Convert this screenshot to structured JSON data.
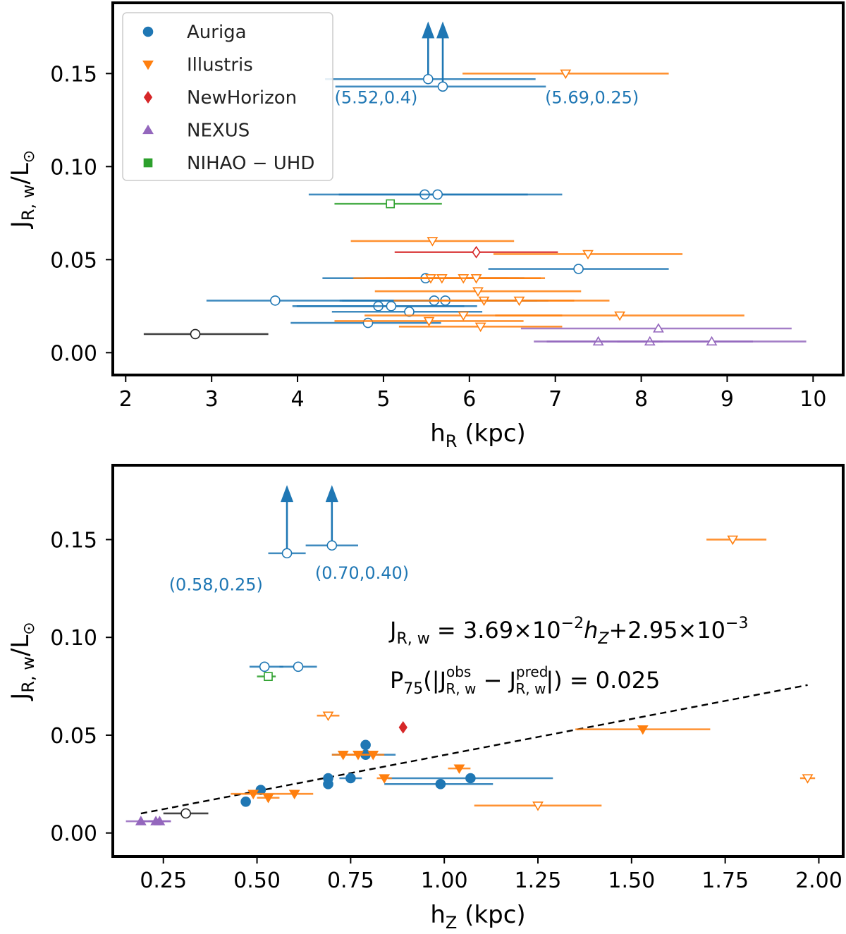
{
  "colors": {
    "Auriga": "#1f77b4",
    "Illustris": "#ff7f0e",
    "NewHorizon": "#d62728",
    "NEXUS": "#9467bd",
    "NIHAO-UHD": "#2ca02c",
    "other": "#222222",
    "fit": "#000000"
  },
  "chart_data": [
    {
      "type": "scatter",
      "xlabel": "h",
      "xlabel_sub": "R",
      "xlabel_unit": " (kpc)",
      "ylabel_main": "J",
      "ylabel_sub": "R, w",
      "ylabel_tail": "/L",
      "ylabel_sym": "⊙",
      "xlim": [
        1.85,
        10.35
      ],
      "ylim": [
        -0.012,
        0.188
      ],
      "xticks": [
        2,
        3,
        4,
        5,
        6,
        7,
        8,
        9,
        10
      ],
      "xtick_labels": [
        "2",
        "3",
        "4",
        "5",
        "6",
        "7",
        "8",
        "9",
        "10"
      ],
      "yticks": [
        0.0,
        0.05,
        0.1,
        0.15
      ],
      "ytick_labels": [
        "0.00",
        "0.05",
        "0.10",
        "0.15"
      ],
      "legend": {
        "placement": "top-left",
        "entries": [
          {
            "label": "Auriga",
            "series": "Auriga",
            "marker": "circle"
          },
          {
            "label": "Illustris",
            "series": "Illustris",
            "marker": "triangle-down"
          },
          {
            "label": "NewHorizon",
            "series": "NewHorizon",
            "marker": "diamond"
          },
          {
            "label": "NEXUS",
            "series": "NEXUS",
            "marker": "triangle-up"
          },
          {
            "label": "NIHAO − UHD",
            "series": "NIHAO-UHD",
            "marker": "square"
          }
        ]
      },
      "series": [
        {
          "name": "Auriga",
          "marker": "circle",
          "filled": false,
          "points": [
            {
              "x": 5.52,
              "y": 0.147,
              "xerr": [
                1.2,
                1.25
              ],
              "lower_limit": true
            },
            {
              "x": 5.69,
              "y": 0.143,
              "xerr": [
                1.25,
                1.2
              ],
              "lower_limit": true
            },
            {
              "x": 5.48,
              "y": 0.085,
              "xerr": [
                1.35,
                1.2
              ]
            },
            {
              "x": 5.63,
              "y": 0.085,
              "xerr": [
                1.15,
                1.45
              ]
            },
            {
              "x": 7.27,
              "y": 0.045,
              "xerr": [
                1.05,
                1.05
              ]
            },
            {
              "x": 5.49,
              "y": 0.04,
              "xerr": [
                1.2,
                1.15
              ]
            },
            {
              "x": 3.74,
              "y": 0.028,
              "xerr": [
                0.8,
                1.25
              ]
            },
            {
              "x": 5.59,
              "y": 0.028,
              "xerr": [
                1.1,
                1.2
              ]
            },
            {
              "x": 5.72,
              "y": 0.028,
              "xerr": [
                1.2,
                1.2
              ]
            },
            {
              "x": 4.94,
              "y": 0.025,
              "xerr": [
                1.0,
                1.0
              ]
            },
            {
              "x": 5.09,
              "y": 0.025,
              "xerr": [
                1.1,
                1.0
              ]
            },
            {
              "x": 5.3,
              "y": 0.022,
              "xerr": [
                0.9,
                0.85
              ]
            },
            {
              "x": 4.82,
              "y": 0.016,
              "xerr": [
                0.9,
                0.85
              ]
            }
          ]
        },
        {
          "name": "Illustris",
          "marker": "triangle-down",
          "filled": false,
          "points": [
            {
              "x": 7.12,
              "y": 0.15,
              "xerr": [
                1.2,
                1.2
              ]
            },
            {
              "x": 5.57,
              "y": 0.06,
              "xerr": [
                0.95,
                0.95
              ]
            },
            {
              "x": 7.38,
              "y": 0.053,
              "xerr": [
                1.1,
                1.1
              ]
            },
            {
              "x": 5.55,
              "y": 0.04,
              "xerr": [
                0.9,
                0.9
              ]
            },
            {
              "x": 5.68,
              "y": 0.04,
              "xerr": [
                0.9,
                0.9
              ]
            },
            {
              "x": 5.93,
              "y": 0.04,
              "xerr": [
                0.9,
                0.9
              ]
            },
            {
              "x": 6.08,
              "y": 0.04,
              "xerr": [
                0.8,
                0.8
              ]
            },
            {
              "x": 6.1,
              "y": 0.033,
              "xerr": [
                1.2,
                1.2
              ]
            },
            {
              "x": 6.17,
              "y": 0.028,
              "xerr": [
                1.05,
                1.05
              ]
            },
            {
              "x": 6.58,
              "y": 0.028,
              "xerr": [
                1.05,
                1.05
              ]
            },
            {
              "x": 5.93,
              "y": 0.02,
              "xerr": [
                1.15,
                1.15
              ]
            },
            {
              "x": 7.75,
              "y": 0.02,
              "xerr": [
                1.45,
                1.45
              ]
            },
            {
              "x": 5.53,
              "y": 0.017,
              "xerr": [
                1.1,
                1.1
              ]
            },
            {
              "x": 6.13,
              "y": 0.014,
              "xerr": [
                0.95,
                0.95
              ]
            }
          ]
        },
        {
          "name": "NewHorizon",
          "marker": "diamond",
          "filled": false,
          "points": [
            {
              "x": 6.08,
              "y": 0.054,
              "xerr": [
                0.95,
                0.95
              ]
            }
          ]
        },
        {
          "name": "NEXUS",
          "marker": "triangle-up",
          "filled": false,
          "points": [
            {
              "x": 8.2,
              "y": 0.013,
              "xerr": [
                1.6,
                1.55
              ]
            },
            {
              "x": 7.5,
              "y": 0.006,
              "xerr": [
                0.75,
                0.75
              ]
            },
            {
              "x": 8.1,
              "y": 0.006,
              "xerr": [
                1.2,
                1.2
              ]
            },
            {
              "x": 8.82,
              "y": 0.006,
              "xerr": [
                1.1,
                1.1
              ]
            }
          ]
        },
        {
          "name": "NIHAO-UHD",
          "marker": "square",
          "filled": false,
          "points": [
            {
              "x": 5.08,
              "y": 0.08,
              "xerr": [
                0.65,
                0.6
              ]
            }
          ]
        },
        {
          "name": "other",
          "marker": "circle",
          "filled": false,
          "points": [
            {
              "x": 2.81,
              "y": 0.01,
              "xerr": [
                0.6,
                0.85
              ]
            }
          ]
        }
      ],
      "annotations": [
        {
          "text": "(5.52,0.4)",
          "x": 4.43,
          "y": 0.134
        },
        {
          "text": "(5.69,0.25)",
          "x": 6.88,
          "y": 0.134
        }
      ]
    },
    {
      "type": "scatter",
      "xlabel": "h",
      "xlabel_sub": "Z",
      "xlabel_unit": " (kpc)",
      "ylabel_main": "J",
      "ylabel_sub": "R, w",
      "ylabel_tail": "/L",
      "ylabel_sym": "⊙",
      "xlim": [
        0.115,
        2.065
      ],
      "ylim": [
        -0.012,
        0.188
      ],
      "xticks": [
        0.25,
        0.5,
        0.75,
        1.0,
        1.25,
        1.5,
        1.75,
        2.0
      ],
      "xtick_labels": [
        "0.25",
        "0.50",
        "0.75",
        "1.00",
        "1.25",
        "1.50",
        "1.75",
        "2.00"
      ],
      "yticks": [
        0.0,
        0.05,
        0.1,
        0.15
      ],
      "ytick_labels": [
        "0.00",
        "0.05",
        "0.10",
        "0.15"
      ],
      "fit": {
        "slope": 0.0369,
        "intercept": 0.00295,
        "x_range": [
          0.19,
          1.97
        ],
        "style": "dashed"
      },
      "formula": {
        "line1": {
          "lhs": "J",
          "lhs_sub": "R, w",
          "rhs": " = 3.69×10",
          "exp1": "−2",
          "var": "h",
          "var_sub": "Z",
          "mid": "+2.95×10",
          "exp2": "−3"
        },
        "line2": {
          "p": "P",
          "p_sub": "75",
          "open": "(|J",
          "obs_sup": "obs",
          "obs_sub": "R, w",
          "minus": " − J",
          "pred_sup": "pred",
          "pred_sub": "R, w",
          "close": "|) = 0.025"
        }
      },
      "series": [
        {
          "name": "Auriga",
          "marker": "circle",
          "filled": false,
          "points": [
            {
              "x": 0.58,
              "y": 0.143,
              "xerr": [
                0.05,
                0.05
              ],
              "lower_limit": true
            },
            {
              "x": 0.7,
              "y": 0.147,
              "xerr": [
                0.07,
                0.07
              ],
              "lower_limit": true
            },
            {
              "x": 0.52,
              "y": 0.085,
              "xerr": [
                0.04,
                0.05
              ]
            },
            {
              "x": 0.61,
              "y": 0.085,
              "xerr": [
                0.05,
                0.05
              ]
            }
          ]
        },
        {
          "name": "Auriga",
          "marker": "circle",
          "filled": true,
          "points": [
            {
              "x": 0.47,
              "y": 0.016,
              "xerr": [
                0,
                0
              ]
            },
            {
              "x": 0.51,
              "y": 0.022,
              "xerr": [
                0,
                0
              ]
            },
            {
              "x": 0.69,
              "y": 0.025,
              "xerr": [
                0,
                0
              ]
            },
            {
              "x": 0.69,
              "y": 0.028,
              "xerr": [
                0,
                0
              ]
            },
            {
              "x": 0.75,
              "y": 0.028,
              "xerr": [
                0.03,
                0.03
              ]
            },
            {
              "x": 0.79,
              "y": 0.04,
              "xerr": [
                0.09,
                0.08
              ]
            },
            {
              "x": 0.79,
              "y": 0.045,
              "xerr": [
                0,
                0
              ]
            },
            {
              "x": 0.99,
              "y": 0.025,
              "xerr": [
                0.15,
                0.14
              ]
            },
            {
              "x": 1.07,
              "y": 0.028,
              "xerr": [
                0.22,
                0.22
              ]
            }
          ]
        },
        {
          "name": "Illustris",
          "marker": "triangle-down",
          "filled": false,
          "points": [
            {
              "x": 1.77,
              "y": 0.15,
              "xerr": [
                0.07,
                0.09
              ]
            },
            {
              "x": 0.69,
              "y": 0.06,
              "xerr": [
                0.03,
                0.03
              ]
            },
            {
              "x": 1.25,
              "y": 0.014,
              "xerr": [
                0.17,
                0.17
              ]
            },
            {
              "x": 1.97,
              "y": 0.028,
              "xerr": [
                0.02,
                0.02
              ]
            }
          ]
        },
        {
          "name": "Illustris",
          "marker": "triangle-down",
          "filled": true,
          "points": [
            {
              "x": 0.49,
              "y": 0.02,
              "xerr": [
                0.06,
                0.06
              ]
            },
            {
              "x": 0.53,
              "y": 0.018,
              "xerr": [
                0.03,
                0.03
              ]
            },
            {
              "x": 0.6,
              "y": 0.02,
              "xerr": [
                0.05,
                0.05
              ]
            },
            {
              "x": 0.73,
              "y": 0.04,
              "xerr": [
                0.03,
                0.03
              ]
            },
            {
              "x": 0.77,
              "y": 0.04,
              "xerr": [
                0.03,
                0.03
              ]
            },
            {
              "x": 0.81,
              "y": 0.04,
              "xerr": [
                0.03,
                0.03
              ]
            },
            {
              "x": 0.84,
              "y": 0.028,
              "xerr": [
                0.02,
                0.02
              ]
            },
            {
              "x": 1.04,
              "y": 0.033,
              "xerr": [
                0.03,
                0.03
              ]
            },
            {
              "x": 1.53,
              "y": 0.053,
              "xerr": [
                0.18,
                0.18
              ]
            }
          ]
        },
        {
          "name": "NewHorizon",
          "marker": "diamond",
          "filled": true,
          "points": [
            {
              "x": 0.89,
              "y": 0.054,
              "xerr": [
                0,
                0
              ]
            }
          ]
        },
        {
          "name": "NEXUS",
          "marker": "triangle-up",
          "filled": true,
          "points": [
            {
              "x": 0.19,
              "y": 0.006,
              "xerr": [
                0.04,
                0.04
              ]
            },
            {
              "x": 0.23,
              "y": 0.006,
              "xerr": [
                0.04,
                0.04
              ]
            },
            {
              "x": 0.24,
              "y": 0.006,
              "xerr": [
                0.03,
                0.03
              ]
            }
          ]
        },
        {
          "name": "NIHAO-UHD",
          "marker": "square",
          "filled": false,
          "points": [
            {
              "x": 0.53,
              "y": 0.08,
              "xerr": [
                0.03,
                0.02
              ]
            }
          ]
        },
        {
          "name": "other",
          "marker": "circle",
          "filled": false,
          "points": [
            {
              "x": 0.31,
              "y": 0.01,
              "xerr": [
                0.06,
                0.06
              ]
            }
          ]
        }
      ],
      "annotations": [
        {
          "text": "(0.58,0.25)",
          "x": 0.265,
          "y": 0.124
        },
        {
          "text": "(0.70,0.40)",
          "x": 0.655,
          "y": 0.13
        }
      ]
    }
  ]
}
